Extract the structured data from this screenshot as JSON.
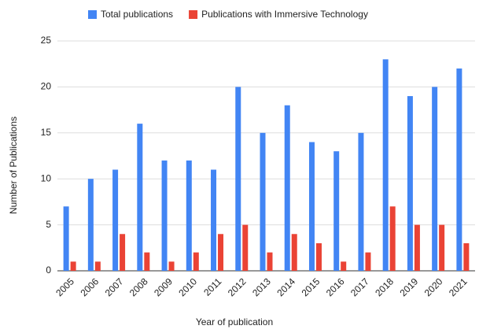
{
  "chart_data": {
    "type": "bar",
    "x_label": "Year of publication",
    "y_label": "Number of Publications",
    "categories": [
      "2005",
      "2006",
      "2007",
      "2008",
      "2009",
      "2010",
      "2011",
      "2012",
      "2013",
      "2014",
      "2015",
      "2016",
      "2017",
      "2018",
      "2019",
      "2020",
      "2021"
    ],
    "series": [
      {
        "name": "Total publications",
        "color": "#4285f4",
        "values": [
          7,
          10,
          11,
          16,
          12,
          12,
          11,
          20,
          15,
          18,
          14,
          13,
          15,
          23,
          19,
          20,
          22
        ]
      },
      {
        "name": "Publications with Immersive Technology",
        "color": "#ea4335",
        "values": [
          1,
          1,
          4,
          2,
          1,
          2,
          4,
          5,
          2,
          4,
          3,
          1,
          2,
          7,
          5,
          5,
          3
        ]
      }
    ],
    "ylim": [
      0,
      25
    ],
    "yticks": [
      0,
      5,
      10,
      15,
      20,
      25
    ],
    "grid": true,
    "legend": "top"
  }
}
